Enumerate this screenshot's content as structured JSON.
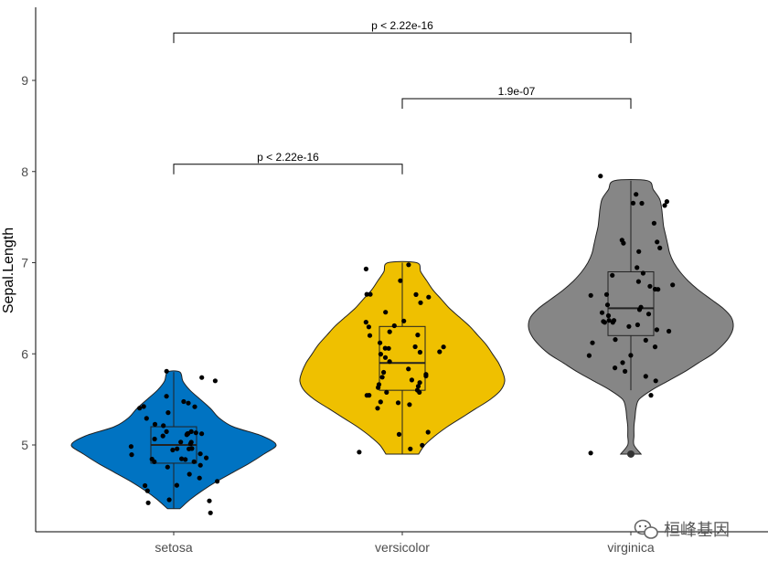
{
  "chart_data": {
    "type": "violin",
    "ylabel": "Sepal.Length",
    "xlabel": "",
    "categories": [
      "setosa",
      "versicolor",
      "virginica"
    ],
    "ylim": [
      4.1,
      9.8
    ],
    "yticks": [
      5,
      6,
      7,
      8,
      9
    ],
    "colors": {
      "setosa": "#0073C2",
      "versicolor": "#EFC000",
      "virginica": "#868686"
    },
    "groups": [
      {
        "name": "setosa",
        "fill": "#0073C2",
        "min": 4.3,
        "q1": 4.8,
        "median": 5.0,
        "q3": 5.2,
        "max": 5.8,
        "density": [
          [
            4.3,
            0.06
          ],
          [
            4.4,
            0.16
          ],
          [
            4.5,
            0.28
          ],
          [
            4.6,
            0.42
          ],
          [
            4.7,
            0.58
          ],
          [
            4.8,
            0.74
          ],
          [
            4.9,
            0.88
          ],
          [
            5.0,
            1.0
          ],
          [
            5.1,
            0.86
          ],
          [
            5.2,
            0.58
          ],
          [
            5.3,
            0.44
          ],
          [
            5.4,
            0.36
          ],
          [
            5.5,
            0.26
          ],
          [
            5.6,
            0.16
          ],
          [
            5.7,
            0.09
          ],
          [
            5.8,
            0.06
          ]
        ],
        "points": [
          5.1,
          4.9,
          4.7,
          4.6,
          5.0,
          5.4,
          4.6,
          5.0,
          4.4,
          4.9,
          5.4,
          4.8,
          4.8,
          4.3,
          5.8,
          5.7,
          5.4,
          5.1,
          5.7,
          5.1,
          5.4,
          5.1,
          4.6,
          5.1,
          4.8,
          5.0,
          5.0,
          5.2,
          5.2,
          4.7,
          4.8,
          5.4,
          5.2,
          5.5,
          4.9,
          5.0,
          5.5,
          4.9,
          4.4,
          5.1,
          5.0,
          4.5,
          4.4,
          5.0,
          5.1,
          4.8,
          5.1,
          4.6,
          5.3,
          5.0
        ]
      },
      {
        "name": "versicolor",
        "fill": "#EFC000",
        "min": 4.9,
        "q1": 5.6,
        "median": 5.9,
        "q3": 6.3,
        "max": 7.0,
        "density": [
          [
            4.9,
            0.16
          ],
          [
            5.0,
            0.22
          ],
          [
            5.1,
            0.32
          ],
          [
            5.2,
            0.44
          ],
          [
            5.3,
            0.58
          ],
          [
            5.4,
            0.72
          ],
          [
            5.5,
            0.86
          ],
          [
            5.6,
            0.96
          ],
          [
            5.7,
            1.0
          ],
          [
            5.8,
            0.98
          ],
          [
            5.9,
            0.94
          ],
          [
            6.0,
            0.88
          ],
          [
            6.1,
            0.82
          ],
          [
            6.2,
            0.74
          ],
          [
            6.3,
            0.66
          ],
          [
            6.4,
            0.56
          ],
          [
            6.5,
            0.46
          ],
          [
            6.6,
            0.38
          ],
          [
            6.7,
            0.3
          ],
          [
            6.8,
            0.24
          ],
          [
            6.9,
            0.18
          ],
          [
            7.0,
            0.14
          ]
        ],
        "points": [
          7.0,
          6.4,
          6.9,
          5.5,
          6.5,
          5.7,
          6.3,
          4.9,
          6.6,
          5.2,
          5.0,
          5.9,
          6.0,
          6.1,
          5.6,
          6.7,
          5.6,
          5.8,
          6.2,
          5.6,
          5.9,
          6.1,
          6.3,
          6.1,
          6.4,
          6.6,
          6.8,
          6.7,
          6.0,
          5.7,
          5.5,
          5.5,
          5.8,
          6.0,
          5.4,
          6.0,
          6.7,
          6.3,
          5.6,
          5.5,
          5.5,
          6.1,
          5.8,
          5.0,
          5.6,
          5.7,
          5.7,
          6.2,
          5.1,
          5.7
        ]
      },
      {
        "name": "virginica",
        "fill": "#868686",
        "min": 5.6,
        "q1": 6.2,
        "median": 6.5,
        "q3": 6.9,
        "max": 7.9,
        "density": [
          [
            4.9,
            0.1
          ],
          [
            5.0,
            0.03
          ],
          [
            5.1,
            0.03
          ],
          [
            5.2,
            0.03
          ],
          [
            5.3,
            0.04
          ],
          [
            5.4,
            0.05
          ],
          [
            5.5,
            0.08
          ],
          [
            5.6,
            0.2
          ],
          [
            5.7,
            0.36
          ],
          [
            5.8,
            0.52
          ],
          [
            5.9,
            0.66
          ],
          [
            6.0,
            0.8
          ],
          [
            6.1,
            0.9
          ],
          [
            6.2,
            0.97
          ],
          [
            6.3,
            1.0
          ],
          [
            6.4,
            0.98
          ],
          [
            6.5,
            0.9
          ],
          [
            6.6,
            0.78
          ],
          [
            6.7,
            0.66
          ],
          [
            6.8,
            0.56
          ],
          [
            6.9,
            0.48
          ],
          [
            7.0,
            0.42
          ],
          [
            7.1,
            0.38
          ],
          [
            7.2,
            0.36
          ],
          [
            7.3,
            0.34
          ],
          [
            7.4,
            0.32
          ],
          [
            7.5,
            0.31
          ],
          [
            7.6,
            0.3
          ],
          [
            7.7,
            0.28
          ],
          [
            7.8,
            0.22
          ],
          [
            7.9,
            0.16
          ]
        ],
        "points": [
          6.3,
          5.8,
          7.1,
          6.3,
          6.5,
          7.6,
          4.9,
          7.3,
          6.7,
          7.2,
          6.5,
          6.4,
          6.8,
          5.7,
          5.8,
          6.4,
          6.5,
          7.7,
          7.7,
          6.0,
          6.9,
          5.6,
          7.7,
          6.3,
          6.7,
          7.2,
          6.2,
          6.1,
          6.4,
          7.2,
          7.4,
          7.9,
          6.4,
          6.3,
          6.1,
          7.7,
          6.3,
          6.4,
          6.0,
          6.9,
          6.7,
          6.9,
          5.8,
          6.8,
          6.7,
          6.7,
          6.3,
          6.5,
          6.2,
          5.9
        ],
        "outliers": [
          4.9
        ]
      }
    ],
    "comparisons": [
      {
        "from": "setosa",
        "to": "versicolor",
        "label": "p < 2.22e-16",
        "y": 8.08
      },
      {
        "from": "versicolor",
        "to": "virginica",
        "label": "1.9e-07",
        "y": 8.8
      },
      {
        "from": "setosa",
        "to": "virginica",
        "label": "p < 2.22e-16",
        "y": 9.52
      }
    ],
    "grid": false,
    "legend": "none"
  },
  "watermark": "桓峰基因"
}
